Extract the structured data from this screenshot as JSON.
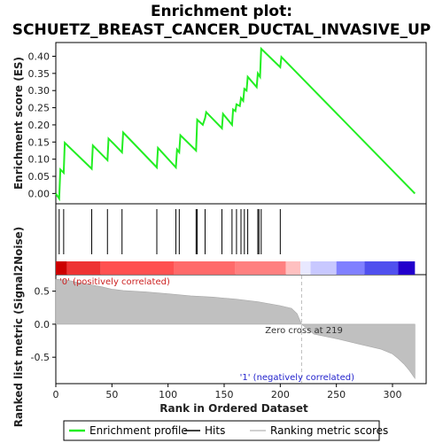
{
  "title_line1": "Enrichment plot:",
  "title_line2": "SCHUETZ_BREAST_CANCER_DUCTAL_INVASIVE_UP",
  "colors": {
    "es_line": "#22ee22",
    "metric_fill": "#c0c0c0",
    "pos_note": "#cc2222",
    "neg_note": "#2222cc",
    "zero_cross_line": "#bbbbbb"
  },
  "chart_data": {
    "type": "line",
    "es_panel": {
      "ylabel": "Enrichment score (ES)",
      "ylim": [
        -0.03,
        0.44
      ],
      "yticks": [
        0.0,
        0.05,
        0.1,
        0.15,
        0.2,
        0.25,
        0.3,
        0.35,
        0.4
      ],
      "series": [
        {
          "name": "Enrichment profile",
          "x": [
            0,
            3,
            4,
            7,
            8,
            32,
            33,
            46,
            47,
            59,
            60,
            90,
            91,
            107,
            108,
            110,
            111,
            125,
            126,
            131,
            132,
            133,
            134,
            148,
            149,
            157,
            158,
            160,
            161,
            164,
            165,
            167,
            168,
            170,
            171,
            179,
            180,
            182,
            183,
            200,
            201,
            320
          ],
          "y": [
            0.0,
            -0.015,
            0.07,
            0.06,
            0.148,
            0.072,
            0.14,
            0.097,
            0.16,
            0.12,
            0.178,
            0.076,
            0.133,
            0.076,
            0.128,
            0.12,
            0.17,
            0.125,
            0.215,
            0.2,
            0.21,
            0.22,
            0.237,
            0.19,
            0.232,
            0.2,
            0.245,
            0.24,
            0.26,
            0.255,
            0.278,
            0.27,
            0.305,
            0.3,
            0.34,
            0.31,
            0.35,
            0.34,
            0.422,
            0.368,
            0.398,
            0.0
          ]
        }
      ]
    },
    "hits": [
      3,
      7,
      32,
      46,
      59,
      90,
      107,
      110,
      125,
      126,
      133,
      148,
      157,
      161,
      165,
      168,
      171,
      180,
      181,
      183,
      200
    ],
    "metric_panel": {
      "xlabel": "Rank in Ordered Dataset",
      "ylabel": "Ranked list metric (Signal2Noise)",
      "xlim": [
        0,
        330
      ],
      "xticks": [
        0,
        50,
        100,
        150,
        200,
        250,
        300
      ],
      "ylim": [
        -0.9,
        0.75
      ],
      "yticks": [
        -0.5,
        0.0,
        0.5
      ],
      "n": 320,
      "zero_cross": 219,
      "metric_profile": {
        "rank": [
          0,
          10,
          20,
          30,
          40,
          50,
          60,
          80,
          100,
          120,
          140,
          160,
          180,
          200,
          210,
          215,
          219,
          230,
          250,
          270,
          290,
          300,
          305,
          310,
          315,
          320
        ],
        "value": [
          0.68,
          0.67,
          0.63,
          0.6,
          0.57,
          0.53,
          0.51,
          0.49,
          0.46,
          0.43,
          0.41,
          0.38,
          0.34,
          0.28,
          0.24,
          0.16,
          0.0,
          -0.15,
          -0.22,
          -0.3,
          -0.38,
          -0.45,
          -0.52,
          -0.6,
          -0.7,
          -0.82
        ]
      },
      "zero_cross_label": "Zero cross at 219",
      "pos_label": "'0' (positively correlated)",
      "neg_label": "'1' (negatively correlated)"
    },
    "colorbar": [
      {
        "from": 0,
        "to": 10,
        "color": "#cc0000"
      },
      {
        "from": 10,
        "to": 40,
        "color": "#ee3333"
      },
      {
        "from": 40,
        "to": 105,
        "color": "#ff5050"
      },
      {
        "from": 105,
        "to": 160,
        "color": "#ff6a6a"
      },
      {
        "from": 160,
        "to": 205,
        "color": "#ff8080"
      },
      {
        "from": 205,
        "to": 218,
        "color": "#ffc0c0"
      },
      {
        "from": 218,
        "to": 227,
        "color": "#e8e8ff"
      },
      {
        "from": 227,
        "to": 250,
        "color": "#c8c8ff"
      },
      {
        "from": 250,
        "to": 275,
        "color": "#8080ff"
      },
      {
        "from": 275,
        "to": 305,
        "color": "#5050ee"
      },
      {
        "from": 305,
        "to": 320,
        "color": "#2200cc"
      }
    ],
    "legend": [
      {
        "label": "Enrichment profile",
        "kind": "line",
        "color": "#22ee22"
      },
      {
        "label": "Hits",
        "kind": "line",
        "color": "#000000"
      },
      {
        "label": "Ranking metric scores",
        "kind": "line",
        "color": "#c0c0c0"
      }
    ]
  }
}
